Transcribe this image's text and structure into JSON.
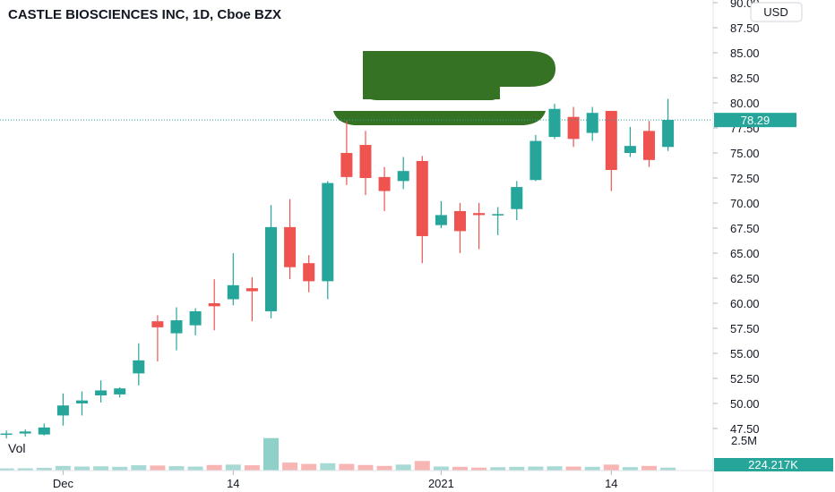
{
  "chart_data": {
    "type": "candlestick",
    "title": "CASTLE BIOSCIENCES INC, 1D, Cboe BZX",
    "currency": "USD",
    "last_price": "78.29",
    "volume_label": "Vol",
    "volume_scale_label": "2.5M",
    "last_volume": "224.217K",
    "y_ticks": [
      "90.00",
      "87.50",
      "85.00",
      "82.50",
      "80.00",
      "77.50",
      "75.00",
      "72.50",
      "70.00",
      "67.50",
      "65.00",
      "62.50",
      "60.00",
      "57.50",
      "55.00",
      "52.50",
      "50.00",
      "47.50"
    ],
    "x_ticks": [
      {
        "label": "Dec",
        "index": 4
      },
      {
        "label": "14",
        "index": 13
      },
      {
        "label": "2021",
        "index": 24
      },
      {
        "label": "14",
        "index": 33
      }
    ],
    "ylim": [
      46,
      90.5
    ],
    "volume_max": 2.5,
    "candles": [
      {
        "o": 46.8,
        "h": 47.2,
        "l": 46.0,
        "c": 46.9,
        "v": 0.18
      },
      {
        "o": 46.9,
        "h": 47.3,
        "l": 46.5,
        "c": 47.0,
        "v": 0.16
      },
      {
        "o": 47.0,
        "h": 47.4,
        "l": 46.7,
        "c": 47.2,
        "v": 0.17
      },
      {
        "o": 46.9,
        "h": 48.0,
        "l": 46.8,
        "c": 47.6,
        "v": 0.2
      },
      {
        "o": 48.8,
        "h": 51.0,
        "l": 47.8,
        "c": 49.8,
        "v": 0.35
      },
      {
        "o": 50.0,
        "h": 51.2,
        "l": 48.8,
        "c": 50.3,
        "v": 0.3
      },
      {
        "o": 50.8,
        "h": 52.3,
        "l": 50.1,
        "c": 51.3,
        "v": 0.32
      },
      {
        "o": 50.9,
        "h": 51.6,
        "l": 50.6,
        "c": 51.5,
        "v": 0.28
      },
      {
        "o": 53.0,
        "h": 56.0,
        "l": 51.8,
        "c": 54.3,
        "v": 0.4
      },
      {
        "o": 58.2,
        "h": 58.8,
        "l": 54.2,
        "c": 57.6,
        "v": 0.38
      },
      {
        "o": 57.0,
        "h": 59.6,
        "l": 55.3,
        "c": 58.3,
        "v": 0.33
      },
      {
        "o": 57.8,
        "h": 59.5,
        "l": 56.8,
        "c": 59.2,
        "v": 0.3
      },
      {
        "o": 60.0,
        "h": 62.4,
        "l": 57.3,
        "c": 59.7,
        "v": 0.42
      },
      {
        "o": 60.4,
        "h": 65.0,
        "l": 59.8,
        "c": 61.8,
        "v": 0.45
      },
      {
        "o": 61.5,
        "h": 62.6,
        "l": 58.2,
        "c": 61.2,
        "v": 0.4
      },
      {
        "o": 59.2,
        "h": 69.8,
        "l": 58.5,
        "c": 67.6,
        "v": 2.45
      },
      {
        "o": 67.6,
        "h": 70.4,
        "l": 62.4,
        "c": 63.6,
        "v": 0.6
      },
      {
        "o": 64.0,
        "h": 64.8,
        "l": 61.1,
        "c": 62.2,
        "v": 0.5
      },
      {
        "o": 62.2,
        "h": 72.2,
        "l": 60.4,
        "c": 72.0,
        "v": 0.55
      },
      {
        "o": 75.0,
        "h": 78.2,
        "l": 71.8,
        "c": 72.6,
        "v": 0.5
      },
      {
        "o": 75.8,
        "h": 77.2,
        "l": 70.8,
        "c": 72.5,
        "v": 0.42
      },
      {
        "o": 72.6,
        "h": 73.6,
        "l": 69.2,
        "c": 71.2,
        "v": 0.35
      },
      {
        "o": 72.2,
        "h": 74.6,
        "l": 71.4,
        "c": 73.2,
        "v": 0.45
      },
      {
        "o": 74.2,
        "h": 74.7,
        "l": 64.0,
        "c": 66.7,
        "v": 0.72
      },
      {
        "o": 67.8,
        "h": 70.2,
        "l": 67.5,
        "c": 68.8,
        "v": 0.3
      },
      {
        "o": 69.2,
        "h": 70.0,
        "l": 65.0,
        "c": 67.2,
        "v": 0.28
      },
      {
        "o": 69.0,
        "h": 70.0,
        "l": 65.4,
        "c": 68.8,
        "v": 0.22
      },
      {
        "o": 68.8,
        "h": 69.6,
        "l": 66.8,
        "c": 68.9,
        "v": 0.25
      },
      {
        "o": 69.4,
        "h": 72.2,
        "l": 68.3,
        "c": 71.6,
        "v": 0.28
      },
      {
        "o": 72.3,
        "h": 76.8,
        "l": 72.2,
        "c": 76.2,
        "v": 0.3
      },
      {
        "o": 76.6,
        "h": 79.9,
        "l": 76.4,
        "c": 79.4,
        "v": 0.32
      },
      {
        "o": 78.6,
        "h": 79.6,
        "l": 75.6,
        "c": 76.4,
        "v": 0.3
      },
      {
        "o": 77.0,
        "h": 79.6,
        "l": 76.2,
        "c": 79.0,
        "v": 0.28
      },
      {
        "o": 79.2,
        "h": 79.2,
        "l": 71.2,
        "c": 73.3,
        "v": 0.45
      },
      {
        "o": 75.0,
        "h": 77.6,
        "l": 74.6,
        "c": 75.7,
        "v": 0.26
      },
      {
        "o": 77.2,
        "h": 78.2,
        "l": 73.6,
        "c": 74.3,
        "v": 0.35
      },
      {
        "o": 75.6,
        "h": 80.4,
        "l": 75.2,
        "c": 78.3,
        "v": 0.22
      }
    ]
  },
  "colors": {
    "up": "#26a69a",
    "down": "#ef5350",
    "up_volume": "#a8dad5",
    "down_volume": "#f7b6b4",
    "big_volume": "#8fd0c9",
    "logo": "#357224",
    "axis_text": "#131722"
  },
  "icons": {
    "watermark": "coffee-cup-logo-icon"
  }
}
